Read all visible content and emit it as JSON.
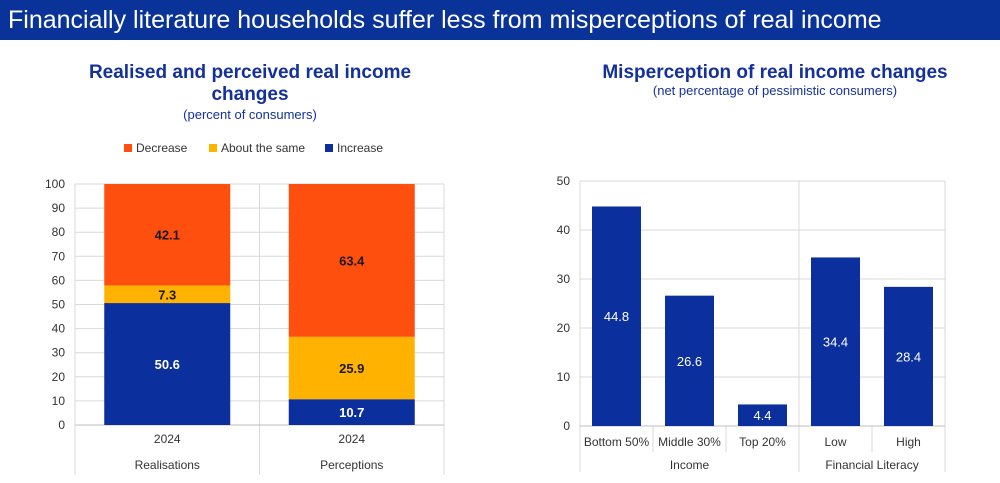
{
  "banner": {
    "title": "Financially literature households suffer less from misperceptions of real income"
  },
  "colors": {
    "banner": "#0a3399",
    "decrease": "#ff4f0f",
    "same": "#ffb300",
    "increase": "#0b2f9c",
    "bar": "#0b2f9c",
    "title": "#14309a"
  },
  "chart_data": [
    {
      "type": "bar",
      "stacked": true,
      "title": "Realised and perceived real income changes",
      "subtitle": "(percent of consumers)",
      "legend": [
        "Decrease",
        "About the same",
        "Increase"
      ],
      "ylim": [
        0,
        100
      ],
      "yticks": [
        0,
        10,
        20,
        30,
        40,
        50,
        60,
        70,
        80,
        90,
        100
      ],
      "categories": [
        {
          "year": "2024",
          "group": "Realisations"
        },
        {
          "year": "2024",
          "group": "Perceptions"
        }
      ],
      "series": [
        {
          "name": "Increase",
          "values": [
            50.6,
            10.7
          ],
          "labels": [
            "50.6",
            "10.7"
          ]
        },
        {
          "name": "About the same",
          "values": [
            7.3,
            25.9
          ],
          "labels": [
            "7.3",
            "25.9"
          ]
        },
        {
          "name": "Decrease",
          "values": [
            42.1,
            63.4
          ],
          "labels": [
            "42.1",
            "63.4"
          ]
        }
      ]
    },
    {
      "type": "bar",
      "title": "Misperception of real income changes",
      "subtitle": "(net percentage of pessimistic consumers)",
      "ylim": [
        0,
        50
      ],
      "yticks": [
        0,
        10,
        20,
        30,
        40,
        50
      ],
      "categories": [
        "Bottom 50%",
        "Middle 30%",
        "Top 20%",
        "Low",
        "High"
      ],
      "values": [
        44.8,
        26.6,
        4.4,
        34.4,
        28.4
      ],
      "labels": [
        "44.8",
        "26.6",
        "4.4",
        "34.4",
        "28.4"
      ],
      "groups": [
        {
          "name": "Income",
          "members": [
            "Bottom 50%",
            "Middle 30%",
            "Top 20%"
          ]
        },
        {
          "name": "Financial Literacy",
          "members": [
            "Low",
            "High"
          ]
        }
      ]
    }
  ]
}
